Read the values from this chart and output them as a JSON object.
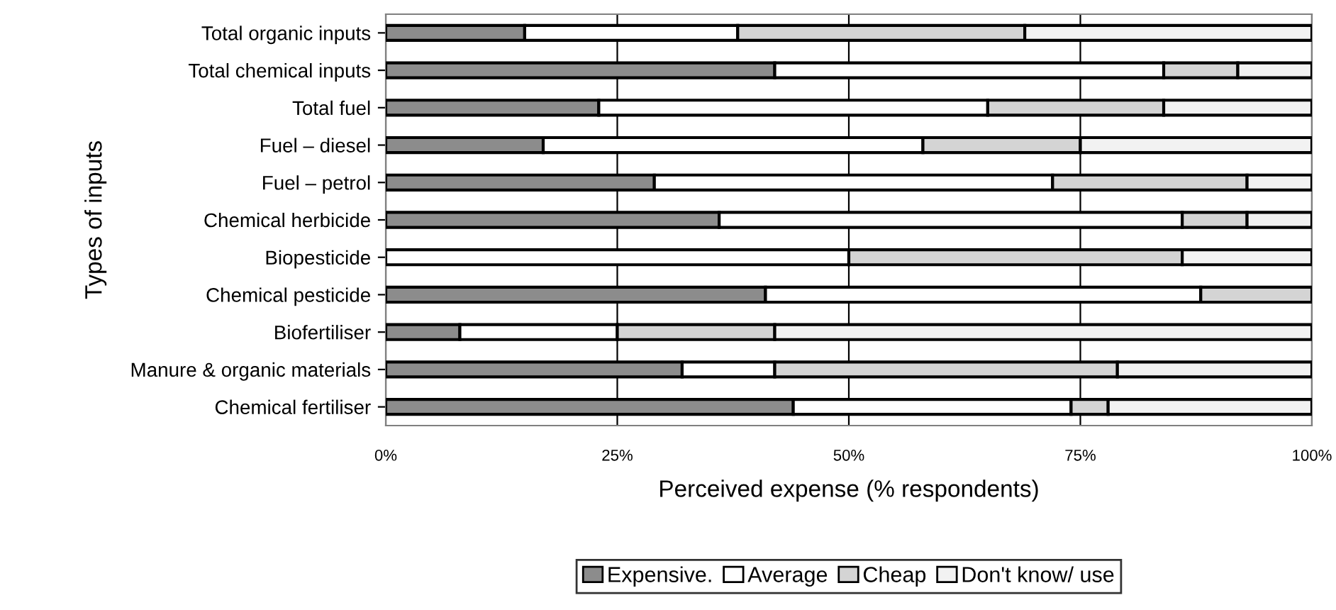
{
  "chart_data": {
    "type": "bar",
    "orientation": "horizontal",
    "stacked": true,
    "xlabel": "Perceived expense (% respondents)",
    "ylabel": "Types of inputs",
    "categories": [
      "Total organic inputs",
      "Total chemical inputs",
      "Total fuel",
      "Fuel – diesel",
      "Fuel – petrol",
      "Chemical herbicide",
      "Biopesticide",
      "Chemical pesticide",
      "Biofertiliser",
      "Manure & organic materials",
      "Chemical fertiliser"
    ],
    "series": [
      {
        "name": "Expensive.",
        "color": "#8c8c8c",
        "values": [
          15,
          42,
          23,
          17,
          29,
          36,
          0,
          41,
          8,
          32,
          44
        ]
      },
      {
        "name": "Average",
        "color": "#ffffff",
        "values": [
          23,
          42,
          42,
          41,
          43,
          50,
          50,
          47,
          17,
          10,
          30
        ]
      },
      {
        "name": "Cheap",
        "color": "#d4d4d4",
        "values": [
          31,
          8,
          19,
          17,
          21,
          7,
          36,
          12,
          17,
          37,
          4
        ]
      },
      {
        "name": "Don't know/ use",
        "color": "#f2f2f2",
        "values": [
          31,
          8,
          16,
          25,
          7,
          7,
          14,
          0,
          58,
          21,
          22
        ]
      }
    ],
    "xlim": [
      0,
      100
    ],
    "xticks": [
      {
        "value": 0,
        "label": "0%"
      },
      {
        "value": 25,
        "label": "25%"
      },
      {
        "value": 50,
        "label": "50%"
      },
      {
        "value": 75,
        "label": "75%"
      },
      {
        "value": 100,
        "label": "100%"
      }
    ],
    "grid": "x",
    "legend": "bottom"
  }
}
